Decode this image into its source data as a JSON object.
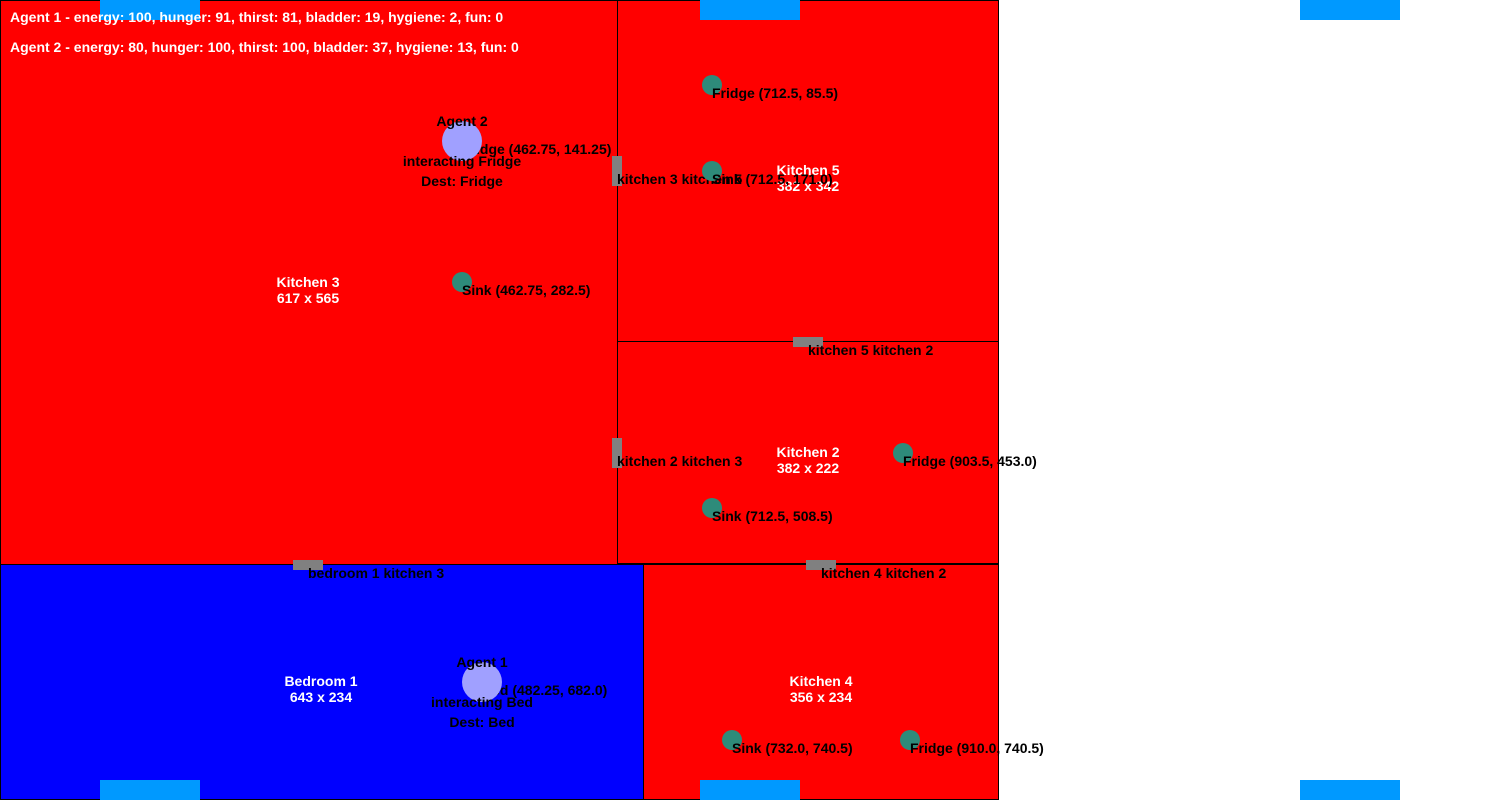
{
  "status": {
    "agent1": "Agent 1 - energy: 100, hunger: 91, thirst: 81, bladder: 19, hygiene: 2, fun: 0",
    "agent2": "Agent 2 - energy: 80, hunger: 100, thirst: 100, bladder: 37, hygiene: 13, fun: 0"
  },
  "colors": {
    "kitchen": "#ff0000",
    "bedroom": "#0000ff",
    "window": "#0099ff",
    "door": "#808080",
    "object": "#2e8b7a",
    "agent": "#a0a0ff"
  },
  "rooms": [
    {
      "name": "Kitchen 3",
      "size": "617 x 565"
    },
    {
      "name": "Kitchen 5",
      "size": "382 x 342"
    },
    {
      "name": "Kitchen 2",
      "size": "382 x 222"
    },
    {
      "name": "Bedroom 1",
      "size": "643 x 234"
    },
    {
      "name": "Kitchen 4",
      "size": "356 x 234"
    }
  ],
  "doors": [
    {
      "label": "kitchen 3 kitchen 5"
    },
    {
      "label": "kitchen 5 kitchen 2"
    },
    {
      "label": "kitchen 2 kitchen 3"
    },
    {
      "label": "bedroom 1 kitchen 3"
    },
    {
      "label": "kitchen 4 kitchen 2"
    }
  ],
  "objects": [
    {
      "label": "Fridge (462.75, 141.25)"
    },
    {
      "label": "Sink (462.75, 282.5)"
    },
    {
      "label": "Fridge (712.5, 85.5)"
    },
    {
      "label": "Sink (712.5, 171.0)"
    },
    {
      "label": "Fridge (903.5, 453.0)"
    },
    {
      "label": "Sink (712.5, 508.5)"
    },
    {
      "label": "Bed (482.25, 682.0)"
    },
    {
      "label": "Sink (732.0, 740.5)"
    },
    {
      "label": "Fridge (910.0, 740.5)"
    }
  ],
  "agents": [
    {
      "name": "Agent 2",
      "action": "interacting Fridge",
      "dest": "Dest: Fridge"
    },
    {
      "name": "Agent 1",
      "action": "interacting Bed",
      "dest": "Dest: Bed"
    }
  ]
}
